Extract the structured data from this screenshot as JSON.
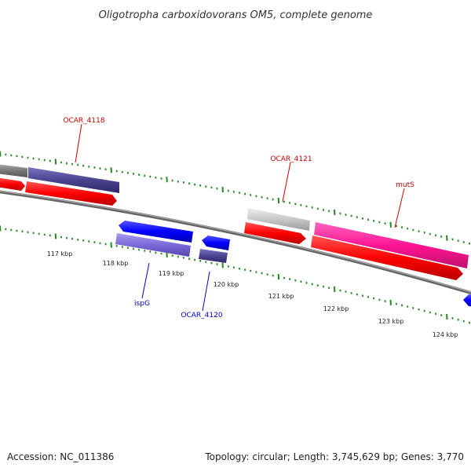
{
  "title": "Oligotropha carboxidovorans OM5, complete genome",
  "footer": {
    "accession": "Accession: NC_011386",
    "summary": "Topology: circular; Length: 3,745,629 bp; Genes: 3,770"
  },
  "scale_labels": [
    "117 kbp",
    "118 kbp",
    "119 kbp",
    "120 kbp",
    "121 kbp",
    "122 kbp",
    "123 kbp",
    "124 kbp"
  ],
  "gene_labels": [
    {
      "text": "OCAR_4118",
      "color": "#cc0000"
    },
    {
      "text": "OCAR_4121",
      "color": "#cc0000"
    },
    {
      "text": "mutS",
      "color": "#cc0000"
    },
    {
      "text": "ispG",
      "color": "#0000cc"
    },
    {
      "text": "OCAR_4120",
      "color": "#0000cc"
    }
  ],
  "colors": {
    "backbone": "#808080",
    "tick": "#228822",
    "forward_cds": "#ff0000",
    "reverse_cds": "#0000ff",
    "gray_feature": "#777777",
    "light_gray_feature": "#c8c8c8",
    "dark_slate_feature": "#4a4490",
    "medium_slate_feature": "#7a6ad8",
    "magenta_feature": "#ff1493"
  }
}
